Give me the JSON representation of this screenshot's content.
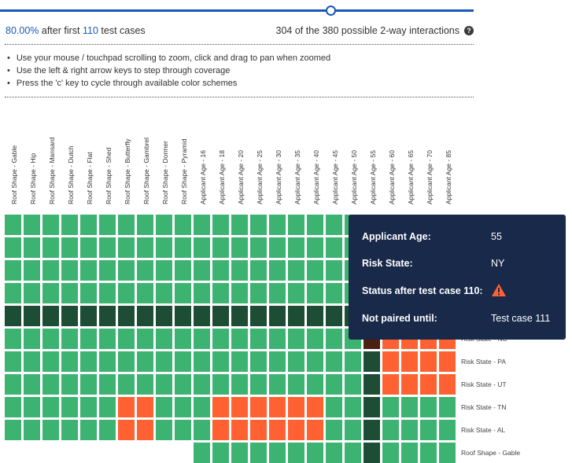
{
  "coverage": {
    "percent": "80.00%",
    "text_after": " after first ",
    "test_count": "110",
    "text_end": " test cases",
    "pairs_summary": "304 of the 380 possible 2-way interactions",
    "slider_fraction": 0.7
  },
  "instructions": [
    "Use your mouse / touchpad scrolling to zoom, click and drag to pan when zoomed",
    "Use the left & right arrow keys to step through coverage",
    "Press the 'c' key to cycle through available color schemes"
  ],
  "columns": [
    "Roof Shape - Gable",
    "Roof Shape - Hip",
    "Roof Shape - Mansard",
    "Roof Shape - Dutch",
    "Roof Shape - Flat",
    "Roof Shape - Shed",
    "Roof Shape - Butterfly",
    "Roof Shape - Gambrel",
    "Roof Shape - Dormer",
    "Roof Shape - Pyramid",
    "Applicant Age - 16",
    "Applicant Age - 18",
    "Applicant Age - 20",
    "Applicant Age - 25",
    "Applicant Age - 30",
    "Applicant Age - 35",
    "Applicant Age - 40",
    "Applicant Age - 45",
    "Applicant Age - 50",
    "Applicant Age - 55",
    "Applicant Age - 60",
    "Applicant Age - 65",
    "Applicant Age - 70",
    "Applicant Age - 85"
  ],
  "row_labels": [
    "",
    "",
    "",
    "",
    "",
    "Risk State - NC",
    "Risk State - PA",
    "Risk State - UT",
    "Risk State - TN",
    "Risk State - AL",
    "Roof Shape - Gable"
  ],
  "matrix": [
    "GGGGGGGGGGGGGGGGGGGGGGGG",
    "GGGGGGGGGGGGGGGGGGGGGGGG",
    "GGGGGGGGGGGGGGGGGGGGGGGG",
    "GGGGGGGGGGGGGGGGGGGGGGGG",
    "DDDDDDDDDDDDDDDDDDDDDDDD",
    "GGGGGGGGGGGGGGGGGGGKOOOO",
    "GGGGGGGGGGGGGGGGGGGDOOOO",
    "GGGGGGGGGGGGGGGGGGGDOOOO",
    "GGGGGGOOGGGOOOOOOGGDGGGG",
    "GGGGGGOOGGGOOOOOOGGDGGGG",
    "..........GGGGGGGGGDGGGG"
  ],
  "colors": {
    "covered": "#3cb371",
    "covered_dark": "#1e4d36",
    "uncovered": "#ff6133",
    "accent": "#1a57b8",
    "tooltip_bg": "#18294a"
  },
  "tooltip": {
    "age_label": "Applicant Age:",
    "age_value": "55",
    "state_label": "Risk State:",
    "state_value": "NY",
    "status_label": "Status after test case 110:",
    "status_icon": "warning-icon",
    "paired_label": "Not paired until:",
    "paired_value": "Test case 111"
  },
  "icons": {
    "help": "?"
  }
}
